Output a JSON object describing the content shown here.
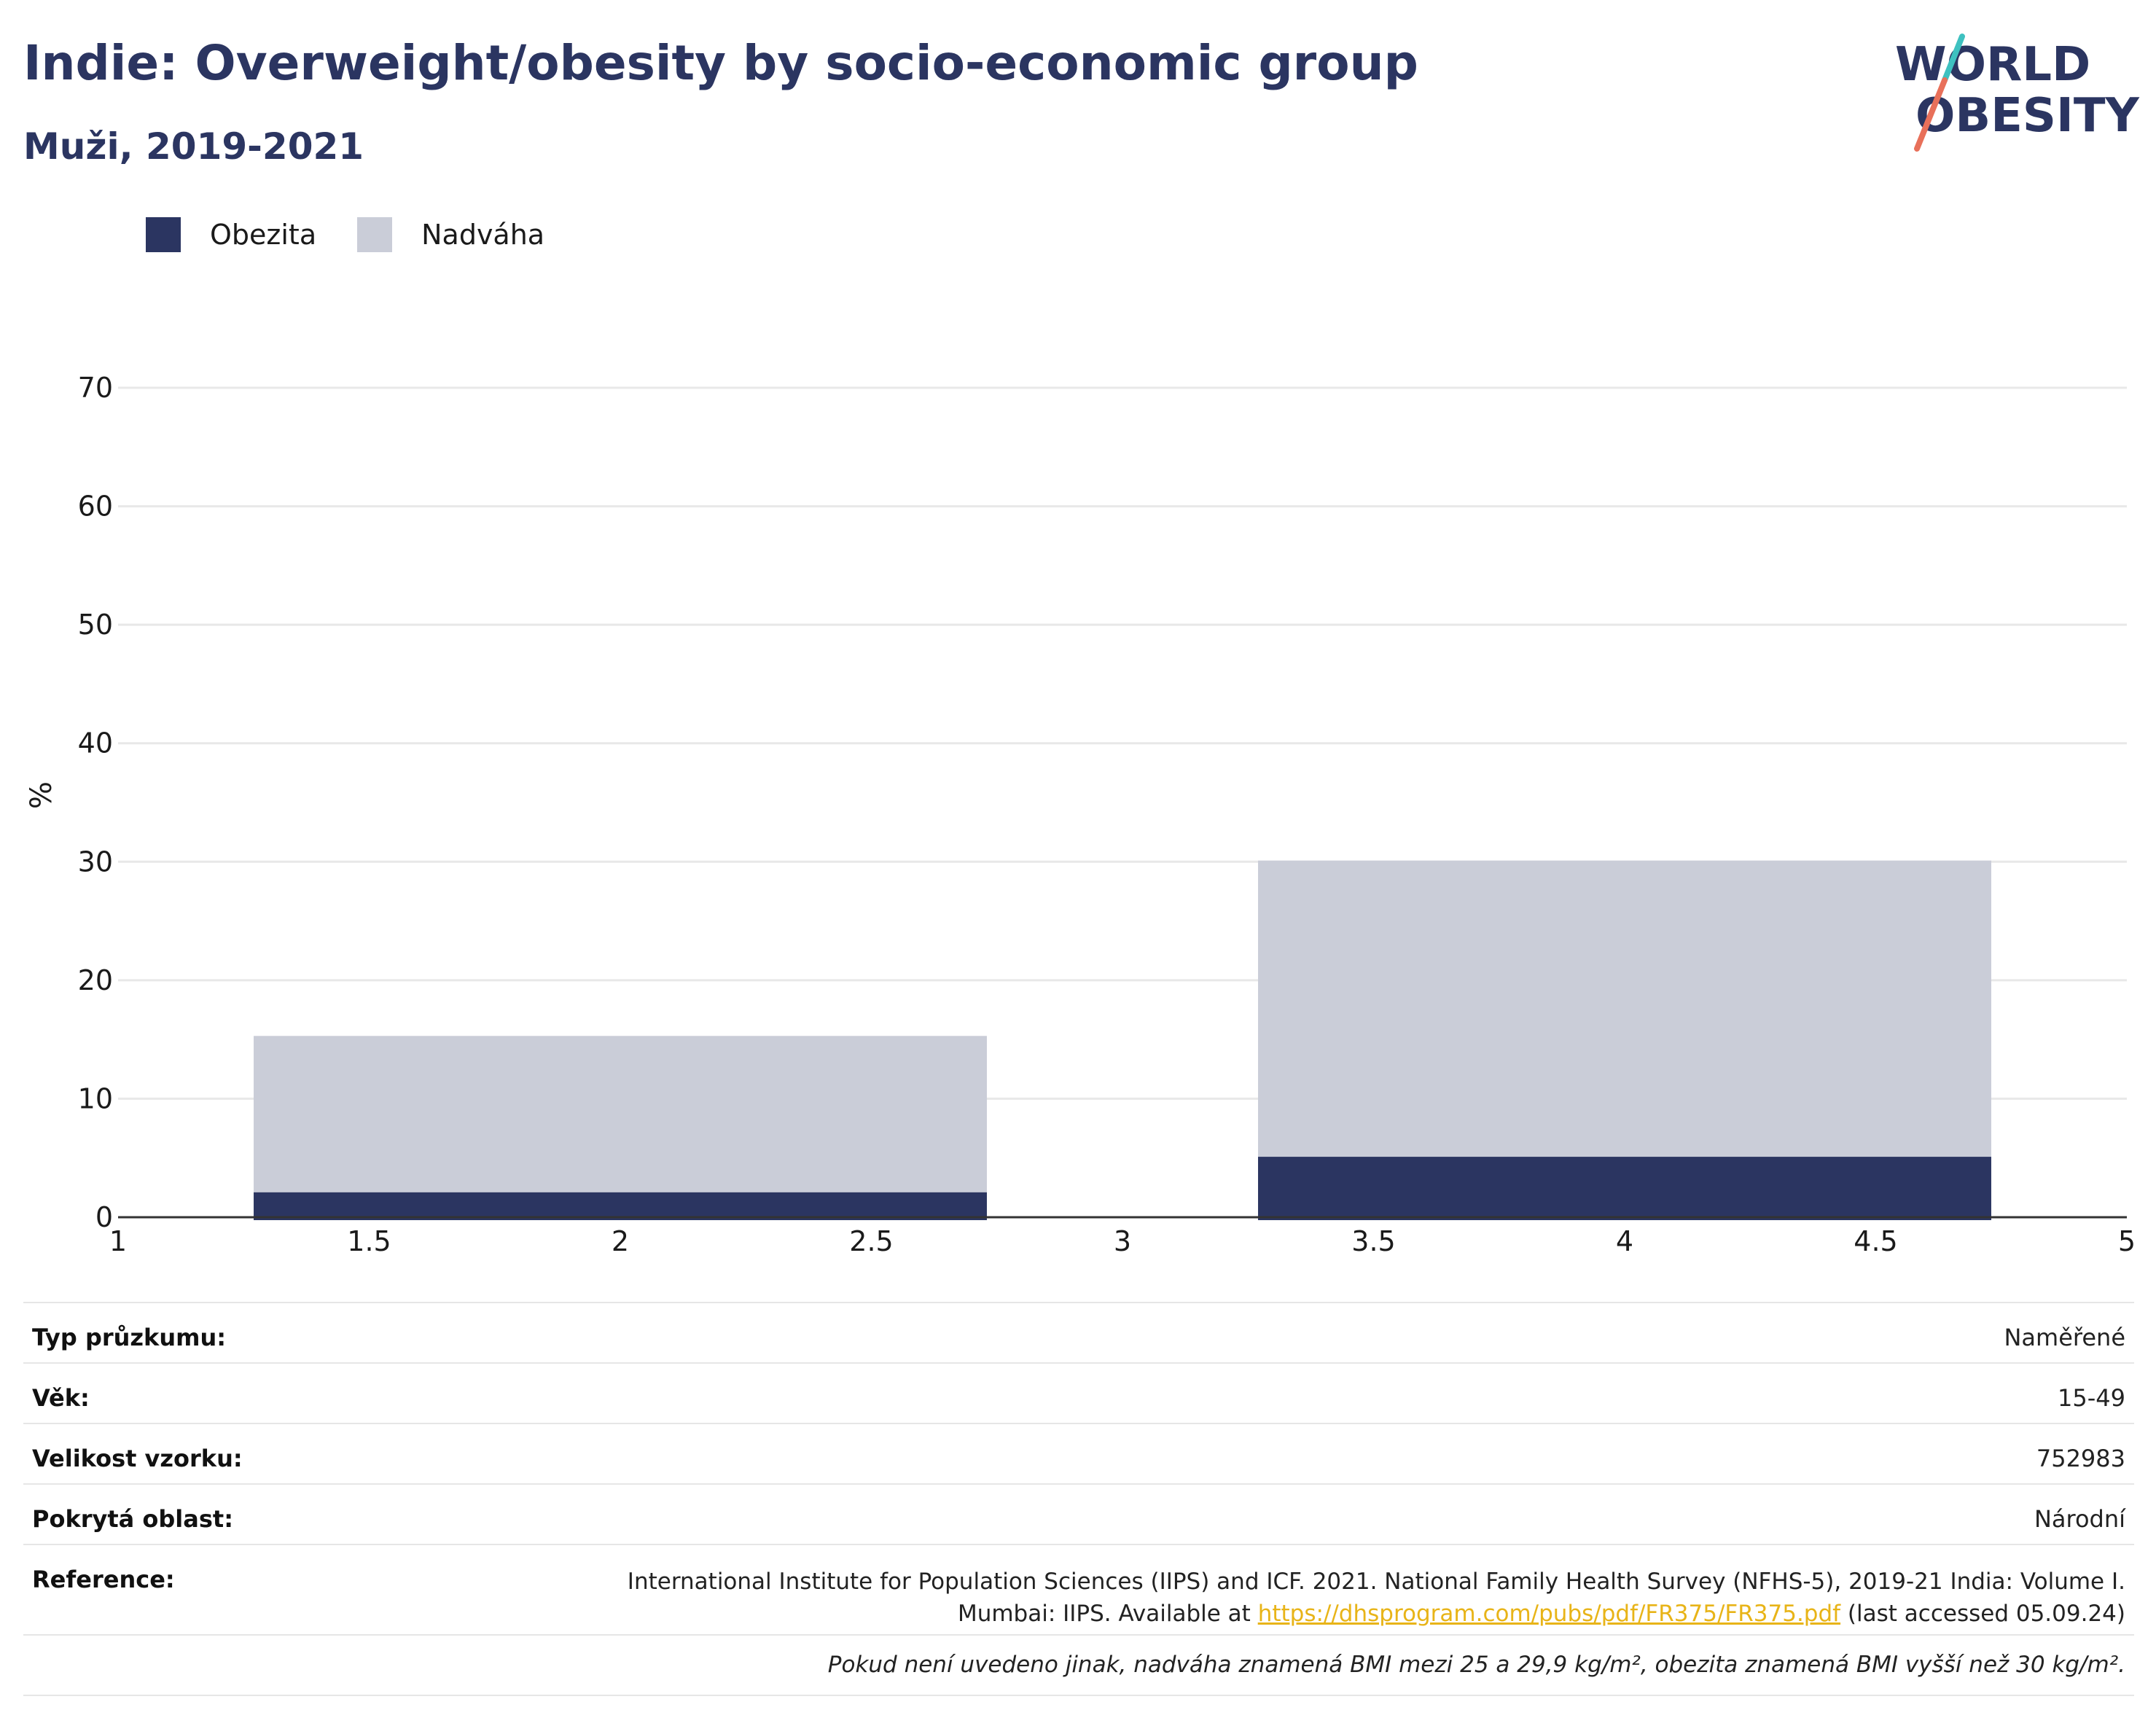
{
  "header": {
    "title": "Indie: Overweight/obesity by socio-economic group",
    "subtitle": "Muži, 2019-2021"
  },
  "logo": {
    "line1": "WORLD",
    "line2": "OBESITY",
    "accent_teal": "#3ec1c0",
    "accent_coral": "#e8705a"
  },
  "colors": {
    "obesity": "#2b3561",
    "overweight": "#cacdd8",
    "axis_text": "#1a1a1a",
    "grid": "#e8e8e8",
    "link": "#e8b418"
  },
  "legend": [
    {
      "label": "Obezita",
      "color": "#2b3561"
    },
    {
      "label": "Nadváha",
      "color": "#cacdd8"
    }
  ],
  "chart_data": {
    "type": "bar",
    "stacked": true,
    "ylabel": "%",
    "xlim": [
      1,
      5
    ],
    "ylim": [
      0,
      70
    ],
    "x_ticks": [
      "1",
      "1.5",
      "2",
      "2.5",
      "3",
      "3.5",
      "4",
      "4.5",
      "5"
    ],
    "y_ticks": [
      "0",
      "10",
      "20",
      "30",
      "40",
      "50",
      "60",
      "70"
    ],
    "grid": true,
    "legend_position": "top-left",
    "bars": [
      {
        "x_start": 1.27,
        "x_end": 2.73,
        "obesity": 2.1,
        "overweight_total": 15.3
      },
      {
        "x_start": 3.27,
        "x_end": 4.73,
        "obesity": 5.1,
        "overweight_total": 30.1
      }
    ]
  },
  "info": {
    "survey_type_label": "Typ průzkumu:",
    "survey_type_value": "Naměřené",
    "age_label": "Věk:",
    "age_value": "15-49",
    "sample_label": "Velikost vzorku:",
    "sample_value": "752983",
    "area_label": "Pokrytá oblast:",
    "area_value": "Národní",
    "reference_label": "Reference:",
    "reference_line1": "International Institute for Population Sciences (IIPS) and ICF. 2021. National Family Health Survey (NFHS-5), 2019-21 India: Volume I.",
    "reference_line2_prefix": "Mumbai: IIPS. Available at ",
    "reference_link": "https://dhsprogram.com/pubs/pdf/FR375/FR375.pdf",
    "reference_line2_suffix": " (last accessed 05.09.24)",
    "note": "Pokud není uvedeno jinak, nadváha znamená BMI mezi 25 a 29,9 kg/m², obezita znamená BMI vyšší než 30 kg/m²."
  }
}
